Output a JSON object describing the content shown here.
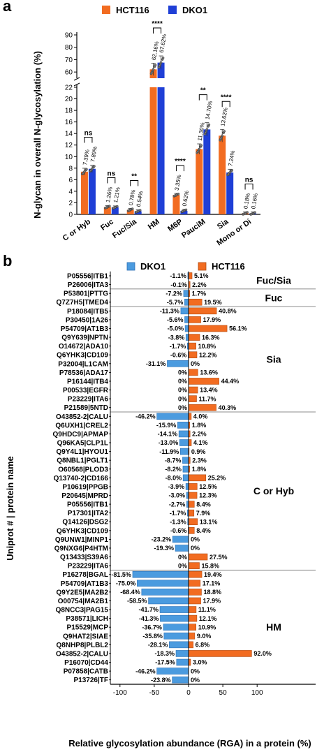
{
  "colors": {
    "hct116": "#f26c21",
    "dko1": "#1f3fd6",
    "dko1_b": "#4b9bdf",
    "hct116_b": "#f26c21"
  },
  "chart_data": [
    {
      "panel": "a",
      "type": "bar",
      "legend": [
        "HCT116",
        "DKO1"
      ],
      "legend_position": "top",
      "ylabel": "N-glycan in overall N-glycosylation (%)",
      "y_ticks_lower": [
        0,
        2,
        4,
        6,
        8,
        10,
        12,
        14,
        16,
        18,
        20,
        22
      ],
      "y_ticks_upper": [
        60,
        70,
        80,
        90
      ],
      "ylim_lower": [
        0,
        22
      ],
      "ylim_upper": [
        55,
        90
      ],
      "categories": [
        "C or Hyb",
        "Fuc",
        "Fuc/Sia",
        "HM",
        "M6P",
        "PauciM",
        "Sia",
        "Mono or Di"
      ],
      "series": [
        {
          "name": "HCT116",
          "values": [
            7.39,
            1.26,
            0.78,
            62.16,
            3.35,
            11.3,
            13.62,
            0.18
          ]
        },
        {
          "name": "DKO1",
          "values": [
            7.89,
            1.21,
            0.54,
            67.62,
            0.62,
            14.7,
            7.24,
            0.16
          ]
        }
      ],
      "value_labels": {
        "HCT116": [
          "7.39%",
          "1.26%",
          "0.78%",
          "62.16%",
          "3.35%",
          "11.30%",
          "13.62%",
          "0.18%"
        ],
        "DKO1": [
          "7.89%",
          "1.21%",
          "0.54%",
          "67.62%",
          "0.62%",
          "14.70%",
          "7.24%",
          "0.16%"
        ]
      },
      "significance": [
        "ns",
        "ns",
        "**",
        "****",
        "****",
        "**",
        "****",
        "ns"
      ]
    },
    {
      "panel": "b",
      "type": "bar",
      "orientation": "horizontal",
      "legend": [
        "DKO1",
        "HCT116"
      ],
      "legend_position": "top",
      "xlabel": "Relative glycosylation abundance (RGA) in a protein (%)",
      "ylabel": "Uniprot # | protein name",
      "xlim": [
        -100,
        100
      ],
      "x_ticks": [
        -100,
        -50,
        0,
        50,
        100
      ],
      "groups": [
        {
          "name": "Fuc/Sia",
          "rows": [
            {
              "protein": "P05556|ITB1",
              "dko1": -1.1,
              "hct116": 5.1,
              "dko1_label": "-1.1%",
              "hct116_label": "5.1%"
            },
            {
              "protein": "P26006|ITA3",
              "dko1": -0.1,
              "hct116": 2.2,
              "dko1_label": "-0.1%",
              "hct116_label": "2.2%"
            }
          ]
        },
        {
          "name": "Fuc",
          "rows": [
            {
              "protein": "P53801|PTTG",
              "dko1": -7.2,
              "hct116": 1.7,
              "dko1_label": "-7.2%",
              "hct116_label": "1.7%"
            },
            {
              "protein": "Q7Z7H5|TMED4",
              "dko1": -5.7,
              "hct116": 19.5,
              "dko1_label": "-5.7%",
              "hct116_label": "19.5%"
            }
          ]
        },
        {
          "name": "Sia",
          "rows": [
            {
              "protein": "P18084|ITB5",
              "dko1": -11.3,
              "hct116": 40.8,
              "dko1_label": "-11.3%",
              "hct116_label": "40.8%"
            },
            {
              "protein": "P30450|1A26",
              "dko1": -5.6,
              "hct116": 17.9,
              "dko1_label": "-5.6%",
              "hct116_label": "17.9%"
            },
            {
              "protein": "P54709|AT1B3",
              "dko1": -5.0,
              "hct116": 56.1,
              "dko1_label": "-5.0%",
              "hct116_label": "56.1%"
            },
            {
              "protein": "Q9Y639|NPTN",
              "dko1": -3.8,
              "hct116": 16.3,
              "dko1_label": "-3.8%",
              "hct116_label": "16.3%"
            },
            {
              "protein": "O14672|ADA10",
              "dko1": -1.7,
              "hct116": 10.8,
              "dko1_label": "-1.7%",
              "hct116_label": "10.8%"
            },
            {
              "protein": "Q6YHK3|CD109",
              "dko1": -0.6,
              "hct116": 12.2,
              "dko1_label": "-0.6%",
              "hct116_label": "12.2%"
            },
            {
              "protein": "P32004|L1CAM",
              "dko1": -31.1,
              "hct116": 0,
              "dko1_label": "-31.1%",
              "hct116_label": "0%"
            },
            {
              "protein": "P78536|ADA17",
              "dko1": 0,
              "hct116": 13.6,
              "dko1_label": "0%",
              "hct116_label": "13.6%"
            },
            {
              "protein": "P16144|ITB4",
              "dko1": 0,
              "hct116": 44.4,
              "dko1_label": "0%",
              "hct116_label": "44.4%"
            },
            {
              "protein": "P00533|EGFR",
              "dko1": 0,
              "hct116": 13.4,
              "dko1_label": "0%",
              "hct116_label": "13.4%"
            },
            {
              "protein": "P23229|ITA6",
              "dko1": 0,
              "hct116": 11.7,
              "dko1_label": "0%",
              "hct116_label": "11.7%"
            },
            {
              "protein": "P21589|5NTD",
              "dko1": 0,
              "hct116": 40.3,
              "dko1_label": "0%",
              "hct116_label": "40.3%"
            }
          ]
        },
        {
          "name": "C or Hyb",
          "rows": [
            {
              "protein": "O43852-2|CALU",
              "dko1": -46.2,
              "hct116": 4.0,
              "dko1_label": "-46.2%",
              "hct116_label": "4.0%"
            },
            {
              "protein": "Q6UXH1|CREL2",
              "dko1": -15.9,
              "hct116": 1.8,
              "dko1_label": "-15.9%",
              "hct116_label": "1.8%"
            },
            {
              "protein": "Q9HDC9|APMAP",
              "dko1": -14.1,
              "hct116": 2.2,
              "dko1_label": "-14.1%",
              "hct116_label": "2.2%"
            },
            {
              "protein": "Q96KA5|CLP1L",
              "dko1": -13.0,
              "hct116": 4.1,
              "dko1_label": "-13.0%",
              "hct116_label": "4.1%"
            },
            {
              "protein": "Q9Y4L1|HYOU1",
              "dko1": -11.9,
              "hct116": 0.9,
              "dko1_label": "-11.9%",
              "hct116_label": "0.9%"
            },
            {
              "protein": "Q8NBL1|PGLT1",
              "dko1": -8.7,
              "hct116": 2.3,
              "dko1_label": "-8.7%",
              "hct116_label": "2.3%"
            },
            {
              "protein": "O60568|PLOD3",
              "dko1": -8.2,
              "hct116": 1.8,
              "dko1_label": "-8.2%",
              "hct116_label": "1.8%"
            },
            {
              "protein": "Q13740-2|CD166",
              "dko1": -8.0,
              "hct116": 25.2,
              "dko1_label": "-8.0%",
              "hct116_label": "25.2%"
            },
            {
              "protein": "P10619|PPGB",
              "dko1": -3.9,
              "hct116": 12.5,
              "dko1_label": "-3.9%",
              "hct116_label": "12.5%"
            },
            {
              "protein": "P20645|MPRD",
              "dko1": -3.0,
              "hct116": 12.3,
              "dko1_label": "-3.0%",
              "hct116_label": "12.3%"
            },
            {
              "protein": "P05556|ITB1",
              "dko1": -2.7,
              "hct116": 8.4,
              "dko1_label": "-2.7%",
              "hct116_label": "8.4%"
            },
            {
              "protein": "P17301|ITA2",
              "dko1": -1.7,
              "hct116": 7.9,
              "dko1_label": "-1.7%",
              "hct116_label": "7.9%"
            },
            {
              "protein": "Q14126|DSG2",
              "dko1": -1.3,
              "hct116": 13.1,
              "dko1_label": "-1.3%",
              "hct116_label": "13.1%"
            },
            {
              "protein": "Q6YHK3|CD109",
              "dko1": -0.6,
              "hct116": 8.4,
              "dko1_label": "-0.6%",
              "hct116_label": "8.4%"
            },
            {
              "protein": "Q9UNW1|MINP1",
              "dko1": -23.2,
              "hct116": 0,
              "dko1_label": "-23.2%",
              "hct116_label": "0%"
            },
            {
              "protein": "Q9NXG6|P4HTM",
              "dko1": -19.3,
              "hct116": 0,
              "dko1_label": "-19.3%",
              "hct116_label": "0%"
            },
            {
              "protein": "Q13433|S39A6",
              "dko1": 0,
              "hct116": 27.5,
              "dko1_label": "0%",
              "hct116_label": "27.5%"
            },
            {
              "protein": "P23229|ITA6",
              "dko1": 0,
              "hct116": 15.8,
              "dko1_label": "0%",
              "hct116_label": "15.8%"
            }
          ]
        },
        {
          "name": "HM",
          "rows": [
            {
              "protein": "P16278|BGAL",
              "dko1": -81.5,
              "hct116": 19.4,
              "dko1_label": "-81.5%",
              "hct116_label": "19.4%"
            },
            {
              "protein": "P54709|AT1B3",
              "dko1": -75.0,
              "hct116": 17.1,
              "dko1_label": "-75.0%",
              "hct116_label": "17.1%"
            },
            {
              "protein": "Q9Y2E5|MA2B2",
              "dko1": -68.4,
              "hct116": 18.8,
              "dko1_label": "-68.4%",
              "hct116_label": "18.8%"
            },
            {
              "protein": "O00754|MA2B1",
              "dko1": -58.5,
              "hct116": 17.9,
              "dko1_label": "-58.5%",
              "hct116_label": "17.9%"
            },
            {
              "protein": "Q8NCC3|PAG15",
              "dko1": -41.7,
              "hct116": 11.1,
              "dko1_label": "-41.7%",
              "hct116_label": "11.1%"
            },
            {
              "protein": "P38571|LICH",
              "dko1": -41.3,
              "hct116": 12.1,
              "dko1_label": "-41.3%",
              "hct116_label": "12.1%"
            },
            {
              "protein": "P15529|MCP",
              "dko1": -36.7,
              "hct116": 10.9,
              "dko1_label": "-36.7%",
              "hct116_label": "10.9%"
            },
            {
              "protein": "Q9HAT2|SIAE",
              "dko1": -35.8,
              "hct116": 9.0,
              "dko1_label": "-35.8%",
              "hct116_label": "9.0%"
            },
            {
              "protein": "Q8NHP8|PLBL2",
              "dko1": -28.1,
              "hct116": 6.8,
              "dko1_label": "-28.1%",
              "hct116_label": "6.8%"
            },
            {
              "protein": "O43852-2|CALU",
              "dko1": -18.3,
              "hct116": 92.0,
              "dko1_label": "-18.3%",
              "hct116_label": "92.0%"
            },
            {
              "protein": "P16070|CD44",
              "dko1": -17.5,
              "hct116": 3.0,
              "dko1_label": "-17.5%",
              "hct116_label": "3.0%"
            },
            {
              "protein": "P07858|CATB",
              "dko1": -46.2,
              "hct116": 0,
              "dko1_label": "-46.2%",
              "hct116_label": "0%"
            },
            {
              "protein": "P13726|TF",
              "dko1": -23.8,
              "hct116": 0,
              "dko1_label": "-23.8%",
              "hct116_label": "0%"
            }
          ]
        }
      ]
    }
  ]
}
